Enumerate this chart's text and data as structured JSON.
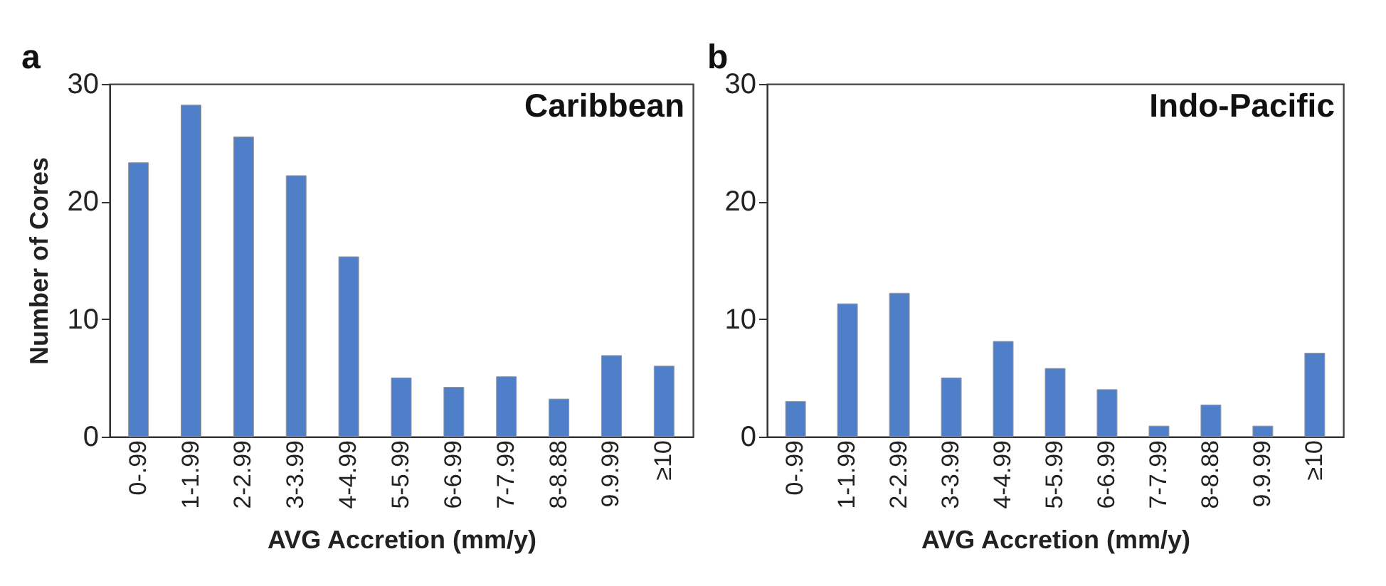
{
  "chart_data": [
    {
      "type": "bar",
      "title": "Caribbean",
      "annotations": [
        "a"
      ],
      "xlabel": "AVG Accretion (mm/y)",
      "ylabel": "Number of Cores",
      "categories": [
        "0-.99",
        "1-1.99",
        "2-2.99",
        "3-3.99",
        "4-4.99",
        "5-5.99",
        "6-6.99",
        "7-7.99",
        "8-8.88",
        "9.9.99",
        "≥10"
      ],
      "values": [
        23.3,
        28.2,
        25.5,
        22.2,
        15.3,
        5.0,
        4.2,
        5.1,
        3.2,
        6.9,
        6.0
      ],
      "color": "#4f7fc8",
      "ylim": [
        0,
        30
      ],
      "yticks": [
        0,
        10,
        20,
        30
      ],
      "grid": false
    },
    {
      "type": "bar",
      "title": "Indo-Pacific",
      "annotations": [
        "b"
      ],
      "xlabel": "AVG Accretion (mm/y)",
      "categories": [
        "0-.99",
        "1-1.99",
        "2-2.99",
        "3-3.99",
        "4-4.99",
        "5-5.99",
        "6-6.99",
        "7-7.99",
        "8-8.88",
        "9.9.99",
        "≥10"
      ],
      "values": [
        3.0,
        11.3,
        12.2,
        5.0,
        8.1,
        5.8,
        4.0,
        0.9,
        2.7,
        0.9,
        7.1
      ],
      "color": "#4f7fc8",
      "ylim": [
        0,
        30
      ],
      "yticks": [
        0,
        10,
        20,
        30
      ],
      "grid": false
    }
  ]
}
